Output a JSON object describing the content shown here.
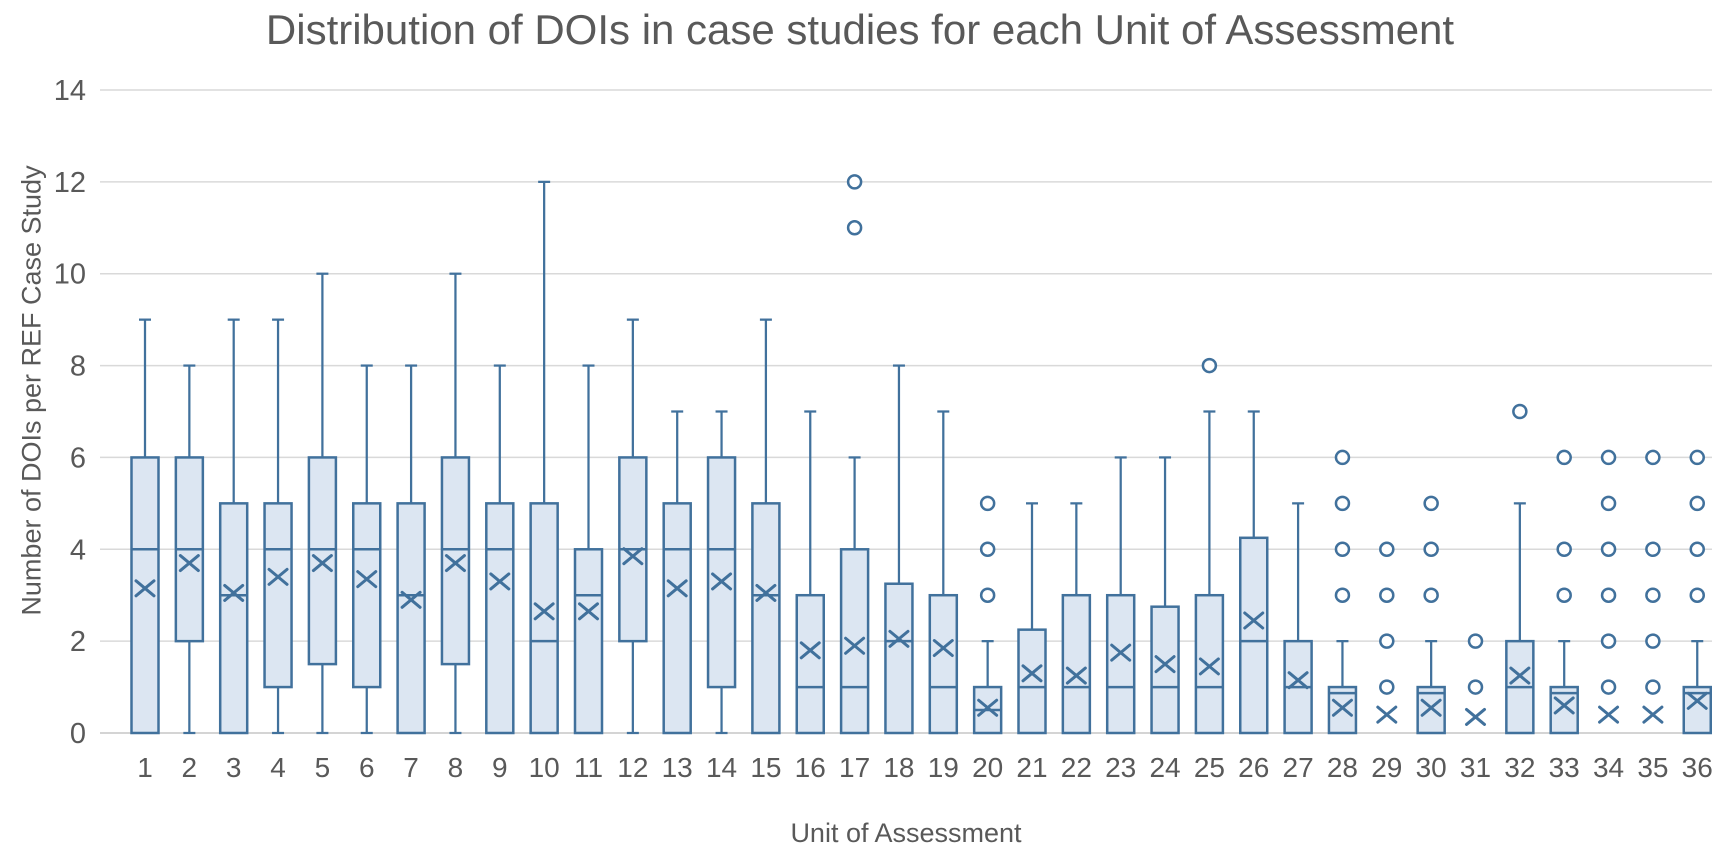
{
  "title": "Distribution of DOIs in case studies for each Unit of Assessment",
  "y_axis": {
    "label": "Number of DOIs per REF Case Study",
    "ticks": [
      0,
      2,
      4,
      6,
      8,
      10,
      12,
      14
    ],
    "min": 0,
    "max": 14
  },
  "x_axis": {
    "label": "Unit of Assessment"
  },
  "colors": {
    "box_stroke": "#41719C",
    "box_fill": "#DCE6F2",
    "gridline": "#D9D9D9",
    "axis_line": "#C6C6C6",
    "text": "#595959"
  },
  "chart_data": {
    "type": "boxplot",
    "title": "Distribution of DOIs in case studies for each Unit of Assessment",
    "xlabel": "Unit of Assessment",
    "ylabel": "Number of DOIs per REF Case Study",
    "ylim": [
      0,
      14
    ],
    "grid": true,
    "legend": false,
    "categories": [
      "1",
      "2",
      "3",
      "4",
      "5",
      "6",
      "7",
      "8",
      "9",
      "10",
      "11",
      "12",
      "13",
      "14",
      "15",
      "16",
      "17",
      "18",
      "19",
      "20",
      "21",
      "22",
      "23",
      "24",
      "25",
      "26",
      "27",
      "28",
      "29",
      "30",
      "31",
      "32",
      "33",
      "34",
      "35",
      "36"
    ],
    "series": [
      {
        "unit": "1",
        "min": 0,
        "q1": 0,
        "median": 4,
        "q3": 6,
        "max": 9,
        "mean": 3.15,
        "outliers": []
      },
      {
        "unit": "2",
        "min": 0,
        "q1": 2,
        "median": 4,
        "q3": 6,
        "max": 8,
        "mean": 3.7,
        "outliers": []
      },
      {
        "unit": "3",
        "min": 0,
        "q1": 0,
        "median": 3,
        "q3": 5,
        "max": 9,
        "mean": 3.05,
        "outliers": []
      },
      {
        "unit": "4",
        "min": 0,
        "q1": 1,
        "median": 4,
        "q3": 5,
        "max": 9,
        "mean": 3.4,
        "outliers": []
      },
      {
        "unit": "5",
        "min": 0,
        "q1": 1.5,
        "median": 4,
        "q3": 6,
        "max": 10,
        "mean": 3.7,
        "outliers": []
      },
      {
        "unit": "6",
        "min": 0,
        "q1": 1,
        "median": 4,
        "q3": 5,
        "max": 8,
        "mean": 3.35,
        "outliers": []
      },
      {
        "unit": "7",
        "min": 0,
        "q1": 0,
        "median": 3,
        "q3": 5,
        "max": 8,
        "mean": 2.9,
        "outliers": []
      },
      {
        "unit": "8",
        "min": 0,
        "q1": 1.5,
        "median": 4,
        "q3": 6,
        "max": 10,
        "mean": 3.7,
        "outliers": []
      },
      {
        "unit": "9",
        "min": 0,
        "q1": 0,
        "median": 4,
        "q3": 5,
        "max": 8,
        "mean": 3.3,
        "outliers": []
      },
      {
        "unit": "10",
        "min": 0,
        "q1": 0,
        "median": 2,
        "q3": 5,
        "max": 12,
        "mean": 2.65,
        "outliers": []
      },
      {
        "unit": "11",
        "min": 0,
        "q1": 0,
        "median": 3,
        "q3": 4,
        "max": 8,
        "mean": 2.65,
        "outliers": []
      },
      {
        "unit": "12",
        "min": 0,
        "q1": 2,
        "median": 4,
        "q3": 6,
        "max": 9,
        "mean": 3.85,
        "outliers": []
      },
      {
        "unit": "13",
        "min": 0,
        "q1": 0,
        "median": 4,
        "q3": 5,
        "max": 7,
        "mean": 3.15,
        "outliers": []
      },
      {
        "unit": "14",
        "min": 0,
        "q1": 1,
        "median": 4,
        "q3": 6,
        "max": 7,
        "mean": 3.3,
        "outliers": []
      },
      {
        "unit": "15",
        "min": 0,
        "q1": 0,
        "median": 3,
        "q3": 5,
        "max": 9,
        "mean": 3.05,
        "outliers": []
      },
      {
        "unit": "16",
        "min": 0,
        "q1": 0,
        "median": 1,
        "q3": 3,
        "max": 7,
        "mean": 1.8,
        "outliers": []
      },
      {
        "unit": "17",
        "min": 0,
        "q1": 0,
        "median": 1,
        "q3": 4,
        "max": 6,
        "mean": 1.9,
        "outliers": [
          11,
          12
        ]
      },
      {
        "unit": "18",
        "min": 0,
        "q1": 0,
        "median": 2,
        "q3": 3.25,
        "max": 8,
        "mean": 2.05,
        "outliers": []
      },
      {
        "unit": "19",
        "min": 0,
        "q1": 0,
        "median": 1,
        "q3": 3,
        "max": 7,
        "mean": 1.85,
        "outliers": []
      },
      {
        "unit": "20",
        "min": 0,
        "q1": 0,
        "median": 0.5,
        "q3": 1,
        "max": 2,
        "mean": 0.55,
        "outliers": [
          3,
          4,
          5
        ]
      },
      {
        "unit": "21",
        "min": 0,
        "q1": 0,
        "median": 1,
        "q3": 2.25,
        "max": 5,
        "mean": 1.3,
        "outliers": []
      },
      {
        "unit": "22",
        "min": 0,
        "q1": 0,
        "median": 1,
        "q3": 3,
        "max": 5,
        "mean": 1.25,
        "outliers": []
      },
      {
        "unit": "23",
        "min": 0,
        "q1": 0,
        "median": 1,
        "q3": 3,
        "max": 6,
        "mean": 1.75,
        "outliers": []
      },
      {
        "unit": "24",
        "min": 0,
        "q1": 0,
        "median": 1,
        "q3": 2.75,
        "max": 6,
        "mean": 1.5,
        "outliers": []
      },
      {
        "unit": "25",
        "min": 0,
        "q1": 0,
        "median": 1,
        "q3": 3,
        "max": 7,
        "mean": 1.45,
        "outliers": [
          8
        ]
      },
      {
        "unit": "26",
        "min": 0,
        "q1": 0,
        "median": 2,
        "q3": 4.25,
        "max": 7,
        "mean": 2.45,
        "outliers": []
      },
      {
        "unit": "27",
        "min": 0,
        "q1": 0,
        "median": 1,
        "q3": 2,
        "max": 5,
        "mean": 1.15,
        "outliers": []
      },
      {
        "unit": "28",
        "min": 0,
        "q1": 0,
        "median": 1,
        "q3": 1,
        "max": 2,
        "mean": 0.55,
        "outliers": [
          3,
          4,
          5,
          6
        ]
      },
      {
        "unit": "29",
        "min": 0,
        "q1": 0,
        "median": 0,
        "q3": 0,
        "max": 0,
        "mean": 0.4,
        "outliers": [
          1,
          2,
          3,
          4
        ]
      },
      {
        "unit": "30",
        "min": 0,
        "q1": 0,
        "median": 1,
        "q3": 1,
        "max": 2,
        "mean": 0.55,
        "outliers": [
          3,
          4,
          5
        ]
      },
      {
        "unit": "31",
        "min": 0,
        "q1": 0,
        "median": 0,
        "q3": 0,
        "max": 0,
        "mean": 0.35,
        "outliers": [
          1,
          2
        ]
      },
      {
        "unit": "32",
        "min": 0,
        "q1": 0,
        "median": 1,
        "q3": 2,
        "max": 5,
        "mean": 1.25,
        "outliers": [
          7
        ]
      },
      {
        "unit": "33",
        "min": 0,
        "q1": 0,
        "median": 1,
        "q3": 1,
        "max": 2,
        "mean": 0.6,
        "outliers": [
          3,
          4,
          6
        ]
      },
      {
        "unit": "34",
        "min": 0,
        "q1": 0,
        "median": 0,
        "q3": 0,
        "max": 0,
        "mean": 0.4,
        "outliers": [
          1,
          2,
          3,
          4,
          5,
          6
        ]
      },
      {
        "unit": "35",
        "min": 0,
        "q1": 0,
        "median": 0,
        "q3": 0,
        "max": 0,
        "mean": 0.4,
        "outliers": [
          1,
          2,
          3,
          4,
          6
        ]
      },
      {
        "unit": "36",
        "min": 0,
        "q1": 0,
        "median": 1,
        "q3": 1,
        "max": 2,
        "mean": 0.7,
        "outliers": [
          3,
          4,
          5,
          6
        ]
      }
    ]
  }
}
